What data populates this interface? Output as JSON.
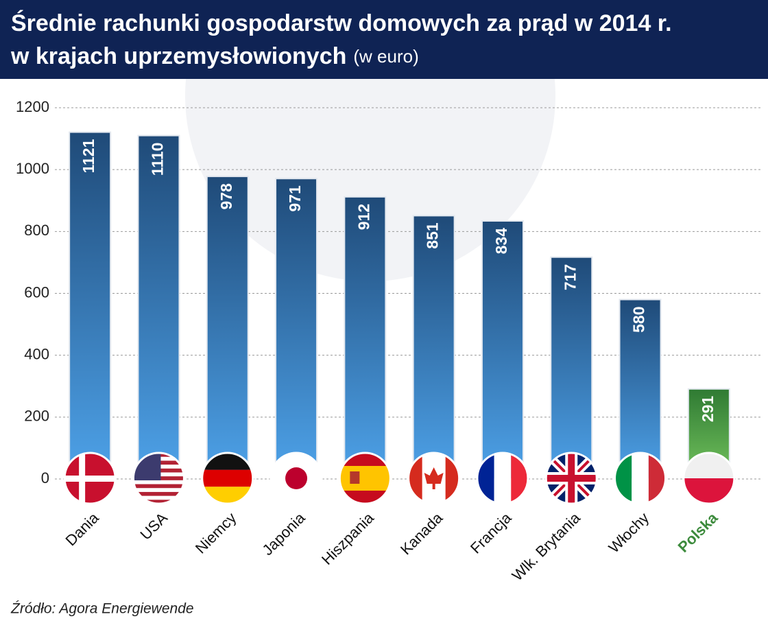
{
  "chart_data": {
    "type": "bar",
    "title": [
      "Średnie rachunki gospodarstw domowych za prąd w 2014 r.",
      "w krajach uprzemysłowionych"
    ],
    "subtitle": "(w euro)",
    "source": "Źródło: Agora Energiewende",
    "categories": [
      "Dania",
      "USA",
      "Niemcy",
      "Japonia",
      "Hiszpania",
      "Kanada",
      "Francja",
      "Wlk. Brytania",
      "Włochy",
      "Polska"
    ],
    "values": [
      1121,
      1110,
      978,
      971,
      912,
      851,
      834,
      717,
      580,
      291
    ],
    "colors": [
      "#2a5f93",
      "#2a5f93",
      "#2a5f93",
      "#2a5f93",
      "#2a5f93",
      "#2a5f93",
      "#2a5f93",
      "#2a5f93",
      "#2a5f93",
      "#3d8b3d"
    ],
    "ylim": [
      0,
      1200
    ],
    "yticks": [
      0,
      200,
      400,
      600,
      800,
      1000,
      1200
    ],
    "grid": true
  }
}
